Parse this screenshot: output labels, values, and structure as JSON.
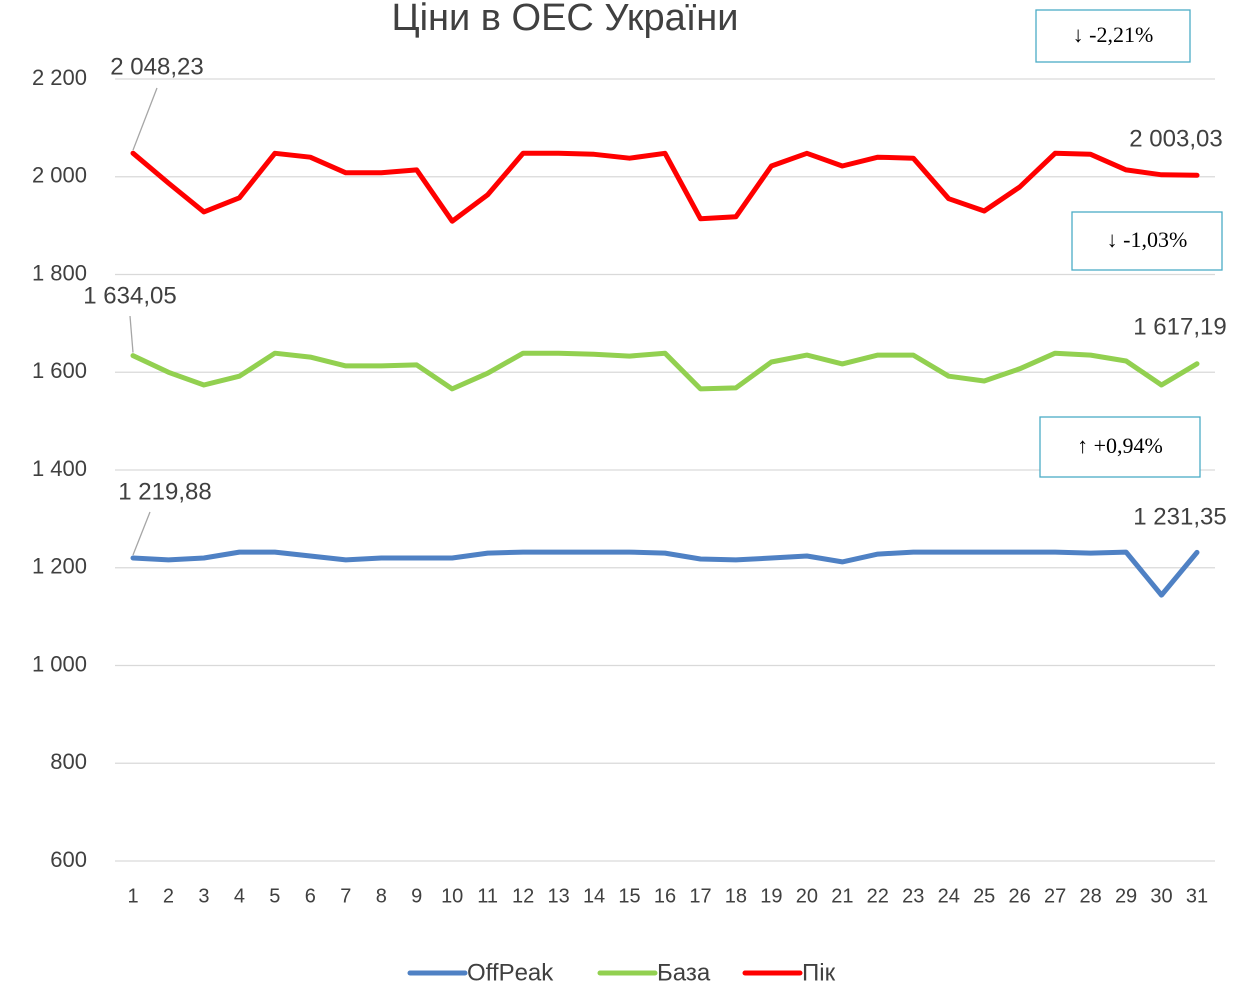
{
  "chart_data": {
    "type": "line",
    "title": "Ціни в ОЕС України",
    "categories": [
      "1",
      "2",
      "3",
      "4",
      "5",
      "6",
      "7",
      "8",
      "9",
      "10",
      "11",
      "12",
      "13",
      "14",
      "15",
      "16",
      "17",
      "18",
      "19",
      "20",
      "21",
      "22",
      "23",
      "24",
      "25",
      "26",
      "27",
      "28",
      "29",
      "30",
      "31"
    ],
    "series": [
      {
        "name": "OffPeak",
        "color": "#4f81c4",
        "values": [
          1219.88,
          1216,
          1220,
          1232,
          1232,
          1224,
          1216,
          1220,
          1220,
          1220,
          1230,
          1232,
          1232,
          1232,
          1232,
          1230,
          1218,
          1216,
          1220,
          1224,
          1212,
          1228,
          1232,
          1232,
          1232,
          1232,
          1232,
          1230,
          1232,
          1144,
          1231.35
        ],
        "value_labels": [
          "1 219,88",
          null,
          null,
          null,
          null,
          null,
          null,
          null,
          null,
          null,
          null,
          null,
          null,
          null,
          null,
          null,
          null,
          null,
          null,
          null,
          null,
          null,
          null,
          null,
          null,
          null,
          null,
          null,
          null,
          null,
          "1 231,35"
        ]
      },
      {
        "name": "База",
        "color": "#92d050",
        "values": [
          1634.05,
          1600,
          1574,
          1592,
          1639,
          1631,
          1613,
          1613,
          1615,
          1566,
          1598,
          1639,
          1639,
          1637,
          1633,
          1639,
          1566,
          1568,
          1621,
          1635,
          1617,
          1635,
          1635,
          1592,
          1582,
          1607,
          1639,
          1635,
          1623,
          1574,
          1617.19
        ],
        "value_labels": [
          "1 634,05",
          null,
          null,
          null,
          null,
          null,
          null,
          null,
          null,
          null,
          null,
          null,
          null,
          null,
          null,
          null,
          null,
          null,
          null,
          null,
          null,
          null,
          null,
          null,
          null,
          null,
          null,
          null,
          null,
          null,
          "1 617,19"
        ]
      },
      {
        "name": "Пік",
        "color": "#ff0000",
        "values": [
          2048.23,
          1987,
          1928,
          1957,
          2048,
          2040,
          2008,
          2008,
          2014,
          1909,
          1963,
          2048,
          2048,
          2046,
          2038,
          2048,
          1914,
          1918,
          2022,
          2048,
          2022,
          2040,
          2038,
          1955,
          1930,
          1979,
          2048,
          2046,
          2014,
          2004,
          2003.03
        ],
        "value_labels": [
          "2 048,23",
          null,
          null,
          null,
          null,
          null,
          null,
          null,
          null,
          null,
          null,
          null,
          null,
          null,
          null,
          null,
          null,
          null,
          null,
          null,
          null,
          null,
          null,
          null,
          null,
          null,
          null,
          null,
          null,
          null,
          "2 003,03"
        ]
      }
    ],
    "ylim": [
      600,
      2200
    ],
    "yticks": [
      600,
      800,
      {
        "value": 1000,
        "label": "1 000"
      },
      {
        "value": 1200,
        "label": "1 200"
      },
      {
        "value": 1400,
        "label": "1 400"
      },
      {
        "value": 1600,
        "label": "1 600"
      },
      {
        "value": 1800,
        "label": "1 800"
      },
      {
        "value": 2000,
        "label": "2 000"
      },
      {
        "value": 2200,
        "label": "2 200"
      }
    ],
    "grid": true,
    "legend": "bottom",
    "annotations": [
      "↓ -2,21%",
      "↓ -1,03%",
      "↑ +0,94%"
    ]
  }
}
